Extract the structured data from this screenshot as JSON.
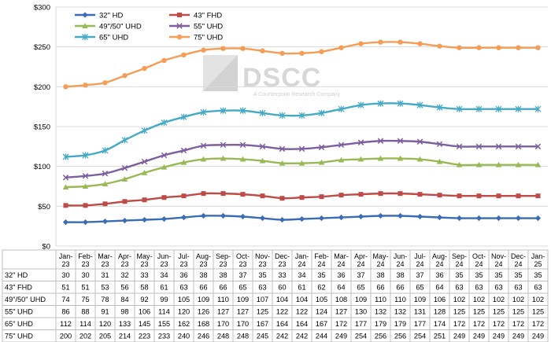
{
  "chart_data": {
    "type": "line",
    "watermark": {
      "brand": "DSCC",
      "tagline": "A Counterpoint Research Company"
    },
    "y_axis": {
      "ylim": [
        0,
        300
      ],
      "ticks": [
        "$0",
        "$50",
        "$100",
        "$150",
        "$200",
        "$250",
        "$300"
      ]
    },
    "categories": [
      [
        "Jan-",
        "23"
      ],
      [
        "Feb-",
        "23"
      ],
      [
        "Mar-",
        "23"
      ],
      [
        "Apr-",
        "23"
      ],
      [
        "May-",
        "23"
      ],
      [
        "Jun-",
        "23"
      ],
      [
        "Jul-",
        "23"
      ],
      [
        "Aug-",
        "23"
      ],
      [
        "Sep-",
        "23"
      ],
      [
        "Oct-",
        "23"
      ],
      [
        "Nov-",
        "23"
      ],
      [
        "Dec-",
        "23"
      ],
      [
        "Jan-",
        "24"
      ],
      [
        "Feb-",
        "24"
      ],
      [
        "Mar-",
        "24"
      ],
      [
        "Apr-",
        "24"
      ],
      [
        "May-",
        "24"
      ],
      [
        "Jun-",
        "24"
      ],
      [
        "Jul-",
        "24"
      ],
      [
        "Aug-",
        "24"
      ],
      [
        "Sep-",
        "24"
      ],
      [
        "Oct-",
        "24"
      ],
      [
        "Nov-",
        "24"
      ],
      [
        "Dec-",
        "24"
      ],
      [
        "Jan-",
        "25"
      ]
    ],
    "legend_position": "top-left",
    "grid": true,
    "series": [
      {
        "name": "32\" HD",
        "color": "#3A6DB5",
        "marker": "diamond",
        "values": [
          30,
          30,
          31,
          32,
          33,
          34,
          36,
          38,
          38,
          37,
          35,
          33,
          34,
          35,
          36,
          37,
          38,
          38,
          37,
          36,
          35,
          35,
          35,
          35,
          35
        ]
      },
      {
        "name": "43\" FHD",
        "color": "#BE4B48",
        "marker": "square",
        "values": [
          51,
          51,
          53,
          56,
          58,
          61,
          63,
          66,
          66,
          65,
          63,
          60,
          61,
          62,
          64,
          65,
          66,
          66,
          65,
          64,
          63,
          63,
          63,
          63,
          63
        ]
      },
      {
        "name": "49\"/50\" UHD",
        "color": "#98B954",
        "marker": "triangle",
        "values": [
          74,
          75,
          78,
          84,
          92,
          99,
          105,
          109,
          110,
          109,
          107,
          104,
          104,
          105,
          108,
          109,
          110,
          110,
          109,
          106,
          102,
          102,
          102,
          102,
          102
        ]
      },
      {
        "name": "55\" UHD",
        "color": "#7D5FA0",
        "marker": "x",
        "values": [
          86,
          88,
          91,
          98,
          106,
          114,
          120,
          126,
          127,
          127,
          125,
          122,
          122,
          124,
          127,
          130,
          132,
          132,
          131,
          128,
          125,
          125,
          125,
          125,
          125
        ]
      },
      {
        "name": "65\" UHD",
        "color": "#46AAC5",
        "marker": "star",
        "values": [
          112,
          114,
          120,
          133,
          145,
          155,
          162,
          168,
          170,
          170,
          167,
          164,
          164,
          167,
          172,
          177,
          179,
          179,
          177,
          174,
          172,
          172,
          172,
          172,
          172
        ]
      },
      {
        "name": "75\" UHD",
        "color": "#F59D56",
        "marker": "circle",
        "values": [
          200,
          202,
          205,
          214,
          223,
          233,
          240,
          246,
          248,
          248,
          245,
          242,
          242,
          244,
          249,
          254,
          256,
          256,
          254,
          251,
          249,
          249,
          249,
          249,
          249
        ]
      }
    ]
  }
}
